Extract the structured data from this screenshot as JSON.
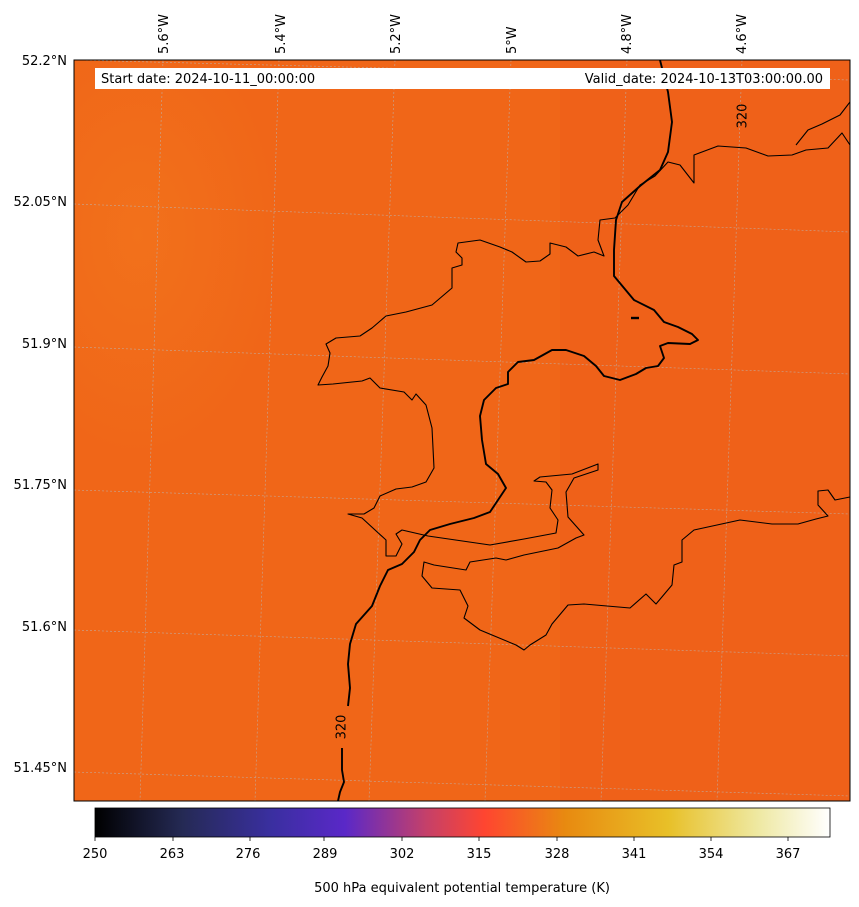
{
  "header": {
    "start_date": "Start date: 2024-10-11_00:00:00",
    "valid_date": "Valid_date: 2024-10-13T03:00:00.00"
  },
  "axes": {
    "lon_labels": [
      "5.6°W",
      "5.4°W",
      "5.2°W",
      "5°W",
      "4.8°W",
      "4.6°W"
    ],
    "lat_labels": [
      "52.2°N",
      "52.05°N",
      "51.9°N",
      "51.75°N",
      "51.6°N",
      "51.45°N"
    ],
    "grid": "dotted graticule"
  },
  "field": {
    "variable": "500 hPa equivalent potential temperature (K)",
    "contour_labels": [
      "320",
      "320"
    ],
    "colors": {
      "dominant": "#F06618",
      "east_shade": "#EE5C1A",
      "west_shade": "#F2721A"
    }
  },
  "colorbar": {
    "label": "500 hPa equivalent potential temperature (K)",
    "ticks": [
      "250",
      "263",
      "276",
      "289",
      "302",
      "315",
      "328",
      "341",
      "354",
      "367"
    ],
    "min": 250,
    "max": 373,
    "colormap": [
      "#000000",
      "#2A2F6B",
      "#5A28C8",
      "#C4406A",
      "#FF4530",
      "#E88A10",
      "#E8C028",
      "#FFFFFF"
    ]
  }
}
